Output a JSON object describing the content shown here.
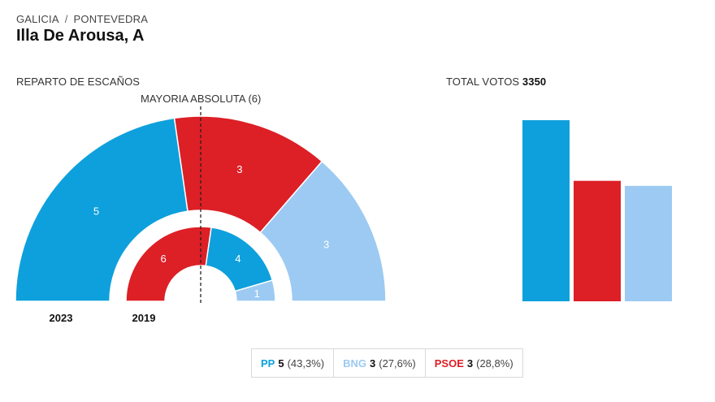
{
  "breadcrumb": {
    "region": "GALICIA",
    "separator": "/",
    "province": "PONTEVEDRA"
  },
  "title": "Illa De Arousa, A",
  "seats_section_label": "REPARTO DE ESCAÑOS",
  "majority_label": "MAYORIA ABSOLUTA (6)",
  "votes_section": {
    "label": "TOTAL VOTOS",
    "total": "3350"
  },
  "colors": {
    "PP": "#0ea0dc",
    "BNG": "#9ccaf2",
    "PSOE": "#dd1f26"
  },
  "chart_data": [
    {
      "type": "pie",
      "subtype": "parliament-semicircle",
      "title": "REPARTO DE ESCAÑOS",
      "majority": 6,
      "rings": [
        {
          "year": "2023",
          "slices": [
            {
              "party": "PP",
              "seats": 5
            },
            {
              "party": "PSOE",
              "seats": 3
            },
            {
              "party": "BNG",
              "seats": 3
            }
          ]
        },
        {
          "year": "2019",
          "slices": [
            {
              "party": "PSOE",
              "seats": 6
            },
            {
              "party": "PP",
              "seats": 4
            },
            {
              "party": "BNG",
              "seats": 1
            }
          ]
        }
      ]
    },
    {
      "type": "bar",
      "title": "TOTAL VOTOS 3350",
      "categories": [
        "PP",
        "PSOE",
        "BNG"
      ],
      "values": [
        43.3,
        28.8,
        27.6
      ],
      "unit": "%"
    }
  ],
  "legend": [
    {
      "party": "PP",
      "seats": "5",
      "pct": "(43,3%)"
    },
    {
      "party": "BNG",
      "seats": "3",
      "pct": "(27,6%)"
    },
    {
      "party": "PSOE",
      "seats": "3",
      "pct": "(28,8%)"
    }
  ]
}
